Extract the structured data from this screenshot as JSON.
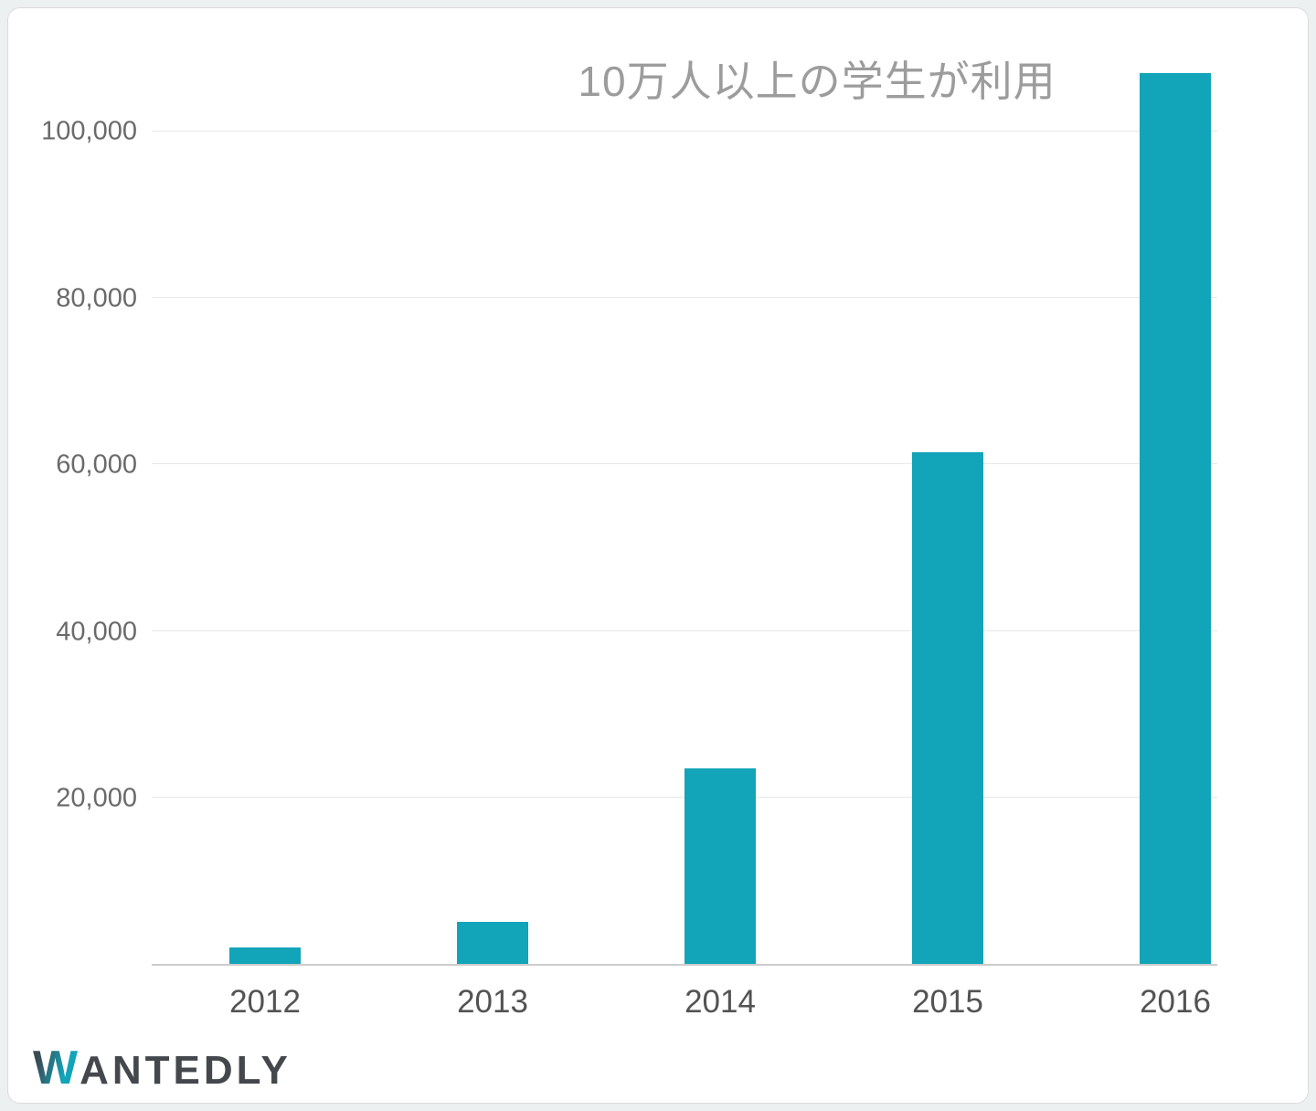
{
  "accent_color": "#12a4b9",
  "chart_data": {
    "type": "bar",
    "title": "10万人以上の学生が利用",
    "categories": [
      "2012",
      "2013",
      "2014",
      "2015",
      "2016"
    ],
    "values": [
      2000,
      5000,
      23500,
      61500,
      107000
    ],
    "xlabel": "",
    "ylabel": "",
    "ylim": [
      0,
      110000
    ],
    "yticks": [
      20000,
      40000,
      60000,
      80000,
      100000
    ],
    "ytick_labels": [
      "20,000",
      "40,000",
      "60,000",
      "80,000",
      "100,000"
    ],
    "grid": true,
    "legend": false,
    "bar_color": "#12a4b9",
    "gridline_color": "#e7e7e7"
  },
  "footer": {
    "brand": "WANTEDLY",
    "brand_w": "W",
    "brand_rest": "ANTEDLY"
  }
}
